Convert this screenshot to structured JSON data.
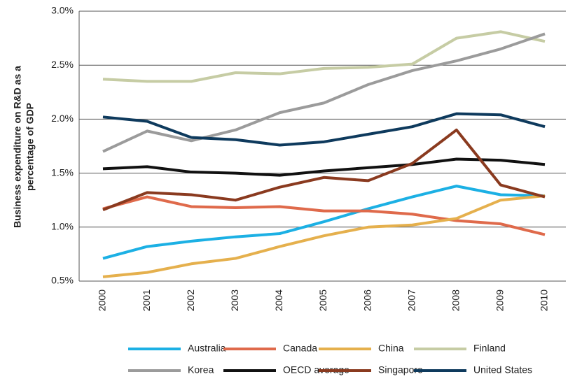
{
  "chart_data": {
    "type": "line",
    "y_label": [
      "Business expenditure on R&D as a",
      "percentage of GDP"
    ],
    "categories": [
      "2000",
      "2001",
      "2002",
      "2003",
      "2004",
      "2005",
      "2006",
      "2007",
      "2008",
      "2009",
      "2010"
    ],
    "ylim": [
      0.5,
      3.0
    ],
    "yticks": [
      {
        "value": 0.5,
        "label": "0.5%"
      },
      {
        "value": 1.0,
        "label": "1.0%"
      },
      {
        "value": 1.5,
        "label": "1.5%"
      },
      {
        "value": 2.0,
        "label": "2.0%"
      },
      {
        "value": 2.5,
        "label": "2.5%"
      },
      {
        "value": 3.0,
        "label": "3.0%"
      }
    ],
    "grid": true,
    "legend": "bottom",
    "series": [
      {
        "name": "Australia",
        "color": "#1cb0e4",
        "values": [
          0.71,
          0.82,
          0.87,
          0.91,
          0.94,
          1.05,
          1.17,
          1.28,
          1.38,
          1.3,
          1.29
        ]
      },
      {
        "name": "Canada",
        "color": "#df6a4b",
        "values": [
          1.17,
          1.28,
          1.19,
          1.18,
          1.19,
          1.15,
          1.15,
          1.12,
          1.06,
          1.03,
          0.93
        ]
      },
      {
        "name": "China",
        "color": "#e5b04d",
        "values": [
          0.54,
          0.58,
          0.66,
          0.71,
          0.82,
          0.92,
          1.0,
          1.02,
          1.08,
          1.25,
          1.29
        ]
      },
      {
        "name": "Finland",
        "color": "#c6cca4",
        "values": [
          2.37,
          2.35,
          2.35,
          2.43,
          2.42,
          2.47,
          2.48,
          2.51,
          2.75,
          2.81,
          2.72
        ]
      },
      {
        "name": "Korea",
        "color": "#9b9b9b",
        "values": [
          1.7,
          1.89,
          1.8,
          1.9,
          2.06,
          2.15,
          2.32,
          2.45,
          2.54,
          2.65,
          2.79
        ]
      },
      {
        "name": "OECD average",
        "color": "#111111",
        "values": [
          1.54,
          1.56,
          1.51,
          1.5,
          1.48,
          1.52,
          1.55,
          1.58,
          1.63,
          1.62,
          1.58
        ]
      },
      {
        "name": "Singapore",
        "color": "#8a3a1f",
        "values": [
          1.16,
          1.32,
          1.3,
          1.25,
          1.37,
          1.46,
          1.43,
          1.59,
          1.9,
          1.39,
          1.28
        ]
      },
      {
        "name": "United States",
        "color": "#0e3a5d",
        "values": [
          2.02,
          1.98,
          1.83,
          1.81,
          1.76,
          1.79,
          1.86,
          1.93,
          2.05,
          2.04,
          1.93
        ]
      }
    ]
  }
}
